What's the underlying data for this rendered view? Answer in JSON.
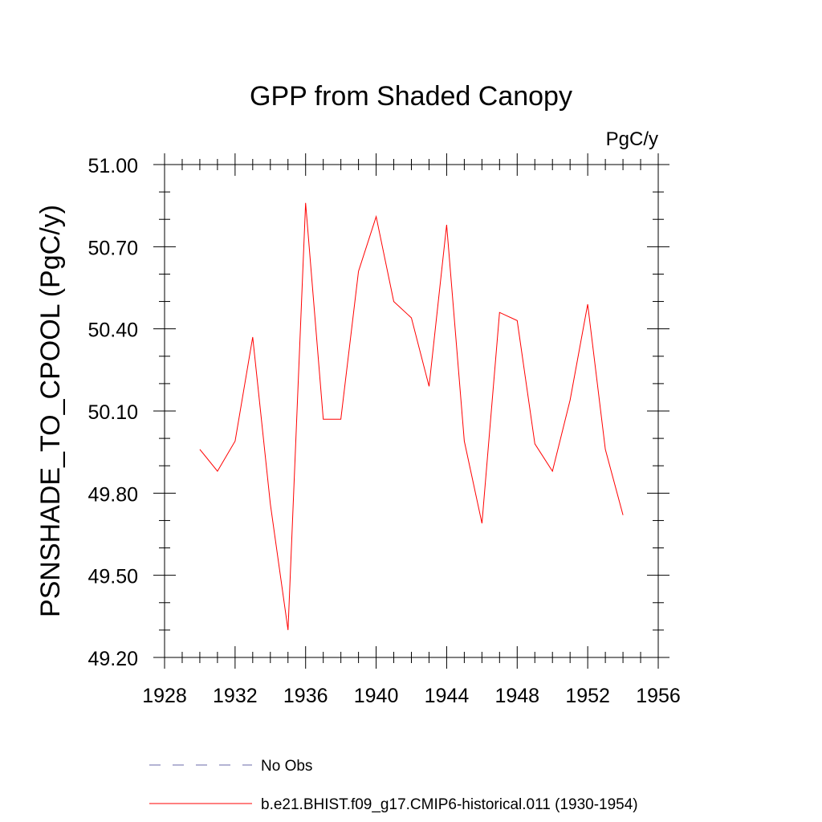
{
  "chart_data": {
    "type": "line",
    "title": "GPP from Shaded Canopy",
    "units_label": "PgC/y",
    "xlabel": "",
    "ylabel": "PSNSHADE_TO_CPOOL  (PgC/y)",
    "xlim": [
      1928,
      1956
    ],
    "ylim": [
      49.2,
      51.0
    ],
    "x_ticks": [
      1928,
      1932,
      1936,
      1940,
      1944,
      1948,
      1952,
      1956
    ],
    "x_tick_labels": [
      "1928",
      "1932",
      "1936",
      "1940",
      "1944",
      "1948",
      "1952",
      "1956"
    ],
    "y_ticks": [
      49.2,
      49.5,
      49.8,
      50.1,
      50.4,
      50.7,
      51.0
    ],
    "y_tick_labels": [
      "49.20",
      "49.50",
      "49.80",
      "50.10",
      "50.40",
      "50.70",
      "51.00"
    ],
    "grid": false,
    "legend_position": "bottom",
    "series": [
      {
        "name": "b.e21.BHIST.f09_g17.CMIP6-historical.011 (1930-1954)",
        "color": "#ff0000",
        "style": "solid",
        "x": [
          1930,
          1931,
          1932,
          1933,
          1934,
          1935,
          1936,
          1937,
          1938,
          1939,
          1940,
          1941,
          1942,
          1943,
          1944,
          1945,
          1946,
          1947,
          1948,
          1949,
          1950,
          1951,
          1952,
          1953,
          1954
        ],
        "values": [
          49.96,
          49.88,
          49.99,
          50.37,
          49.76,
          49.3,
          50.86,
          50.07,
          50.07,
          50.61,
          50.81,
          50.5,
          50.44,
          50.19,
          50.78,
          49.99,
          49.69,
          50.46,
          50.43,
          49.98,
          49.88,
          50.14,
          50.49,
          49.96,
          49.72
        ]
      }
    ],
    "legend": [
      {
        "label": "No Obs",
        "color": "#6a6aaa",
        "style": "dashed"
      },
      {
        "label": "b.e21.BHIST.f09_g17.CMIP6-historical.011 (1930-1954)",
        "color": "#ff0000",
        "style": "solid"
      }
    ]
  }
}
